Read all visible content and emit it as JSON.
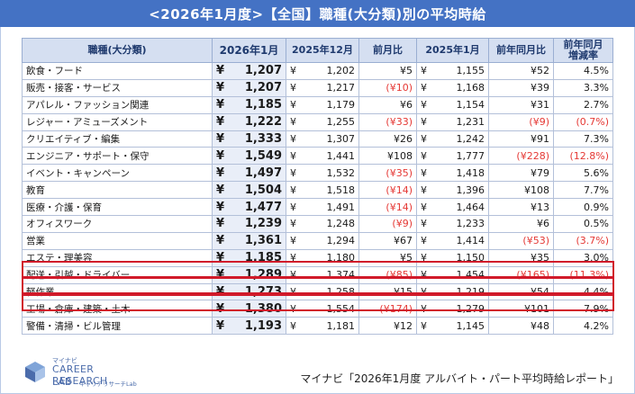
{
  "title": "<2026年1月度>【全国】職種(大分類)別の平均時給",
  "headers": {
    "category": "職種(大分類)",
    "c2026": "2026年1月",
    "c2025_12": "2025年12月",
    "mom": "前月比",
    "c2025_1": "2025年1月",
    "yoy": "前年同月比",
    "yoy_rate_1": "前年同月",
    "yoy_rate_2": "増減率"
  },
  "currency": "¥",
  "rows": [
    {
      "category": "飲食・フード",
      "v2026": "1,207",
      "v2025_12": "1,202",
      "mom": "¥5",
      "mom_neg": false,
      "v2025_1": "1,155",
      "yoy": "¥52",
      "yoy_neg": false,
      "rate": "4.5%",
      "rate_neg": false
    },
    {
      "category": "販売・接客・サービス",
      "v2026": "1,207",
      "v2025_12": "1,217",
      "mom": "(¥10)",
      "mom_neg": true,
      "v2025_1": "1,168",
      "yoy": "¥39",
      "yoy_neg": false,
      "rate": "3.3%",
      "rate_neg": false
    },
    {
      "category": "アパレル・ファッション関連",
      "v2026": "1,185",
      "v2025_12": "1,179",
      "mom": "¥6",
      "mom_neg": false,
      "v2025_1": "1,154",
      "yoy": "¥31",
      "yoy_neg": false,
      "rate": "2.7%",
      "rate_neg": false
    },
    {
      "category": "レジャー・アミューズメント",
      "v2026": "1,222",
      "v2025_12": "1,255",
      "mom": "(¥33)",
      "mom_neg": true,
      "v2025_1": "1,231",
      "yoy": "(¥9)",
      "yoy_neg": true,
      "rate": "(0.7%)",
      "rate_neg": true
    },
    {
      "category": "クリエイティブ・編集",
      "v2026": "1,333",
      "v2025_12": "1,307",
      "mom": "¥26",
      "mom_neg": false,
      "v2025_1": "1,242",
      "yoy": "¥91",
      "yoy_neg": false,
      "rate": "7.3%",
      "rate_neg": false
    },
    {
      "category": "エンジニア・サポート・保守",
      "v2026": "1,549",
      "v2025_12": "1,441",
      "mom": "¥108",
      "mom_neg": false,
      "v2025_1": "1,777",
      "yoy": "(¥228)",
      "yoy_neg": true,
      "rate": "(12.8%)",
      "rate_neg": true
    },
    {
      "category": "イベント・キャンペーン",
      "v2026": "1,497",
      "v2025_12": "1,532",
      "mom": "(¥35)",
      "mom_neg": true,
      "v2025_1": "1,418",
      "yoy": "¥79",
      "yoy_neg": false,
      "rate": "5.6%",
      "rate_neg": false
    },
    {
      "category": "教育",
      "v2026": "1,504",
      "v2025_12": "1,518",
      "mom": "(¥14)",
      "mom_neg": true,
      "v2025_1": "1,396",
      "yoy": "¥108",
      "yoy_neg": false,
      "rate": "7.7%",
      "rate_neg": false
    },
    {
      "category": "医療・介護・保育",
      "v2026": "1,477",
      "v2025_12": "1,491",
      "mom": "(¥14)",
      "mom_neg": true,
      "v2025_1": "1,464",
      "yoy": "¥13",
      "yoy_neg": false,
      "rate": "0.9%",
      "rate_neg": false
    },
    {
      "category": "オフィスワーク",
      "v2026": "1,239",
      "v2025_12": "1,248",
      "mom": "(¥9)",
      "mom_neg": true,
      "v2025_1": "1,233",
      "yoy": "¥6",
      "yoy_neg": false,
      "rate": "0.5%",
      "rate_neg": false
    },
    {
      "category": "営業",
      "v2026": "1,361",
      "v2025_12": "1,294",
      "mom": "¥67",
      "mom_neg": false,
      "v2025_1": "1,414",
      "yoy": "(¥53)",
      "yoy_neg": true,
      "rate": "(3.7%)",
      "rate_neg": true
    },
    {
      "category": "エステ・理美容",
      "v2026": "1,185",
      "v2025_12": "1,180",
      "mom": "¥5",
      "mom_neg": false,
      "v2025_1": "1,150",
      "yoy": "¥35",
      "yoy_neg": false,
      "rate": "3.0%",
      "rate_neg": false
    },
    {
      "category": "配送・引越・ドライバー",
      "v2026": "1,289",
      "v2025_12": "1,374",
      "mom": "(¥85)",
      "mom_neg": true,
      "v2025_1": "1,454",
      "yoy": "(¥165)",
      "yoy_neg": true,
      "rate": "(11.3%)",
      "rate_neg": true
    },
    {
      "category": "軽作業",
      "v2026": "1,273",
      "v2025_12": "1,258",
      "mom": "¥15",
      "mom_neg": false,
      "v2025_1": "1,219",
      "yoy": "¥54",
      "yoy_neg": false,
      "rate": "4.4%",
      "rate_neg": false
    },
    {
      "category": "工場・倉庫・建築・土木",
      "v2026": "1,380",
      "v2025_12": "1,554",
      "mom": "(¥174)",
      "mom_neg": true,
      "v2025_1": "1,279",
      "yoy": "¥101",
      "yoy_neg": false,
      "rate": "7.9%",
      "rate_neg": false
    },
    {
      "category": "警備・清掃・ビル管理",
      "v2026": "1,193",
      "v2025_12": "1,181",
      "mom": "¥12",
      "mom_neg": false,
      "v2025_1": "1,145",
      "yoy": "¥48",
      "yoy_neg": false,
      "rate": "4.2%",
      "rate_neg": false
    }
  ],
  "highlighted_rows": [
    "エステ・理美容",
    "配送・引越・ドライバー",
    "軽作業"
  ],
  "logo": {
    "top": "マイナビ",
    "line1": "CAREER RESEARCH",
    "line2": "LAB",
    "sub": "キャリアリサーチLab"
  },
  "source": "マイナビ「2026年1月度 アルバイト・パート平均時給レポート」",
  "colors": {
    "title_bg": "#4472c4",
    "header_bg": "#d5dff1",
    "negative": "#e53935",
    "highlight_border": "#d11a2a"
  }
}
